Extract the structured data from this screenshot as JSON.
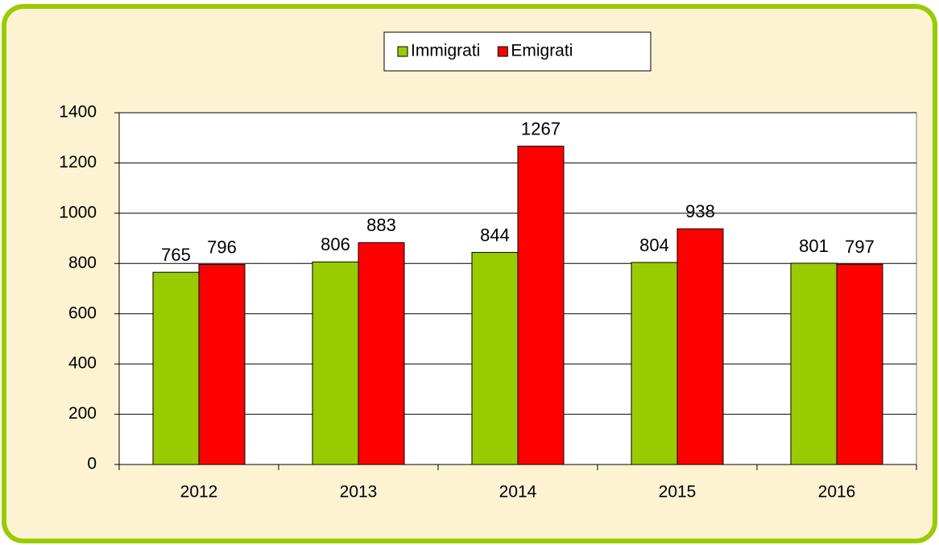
{
  "chart_data": {
    "type": "bar",
    "categories": [
      "2012",
      "2013",
      "2014",
      "2015",
      "2016"
    ],
    "series": [
      {
        "name": "Immigrati",
        "color": "#99cc00",
        "values": [
          765,
          806,
          844,
          804,
          801
        ]
      },
      {
        "name": "Emigrati",
        "color": "#ff0000",
        "values": [
          796,
          883,
          1267,
          938,
          797
        ]
      }
    ],
    "ylim": [
      0,
      1400
    ],
    "yticks": [
      0,
      200,
      400,
      600,
      800,
      1000,
      1200,
      1400
    ],
    "grid": true,
    "legend": "top"
  }
}
